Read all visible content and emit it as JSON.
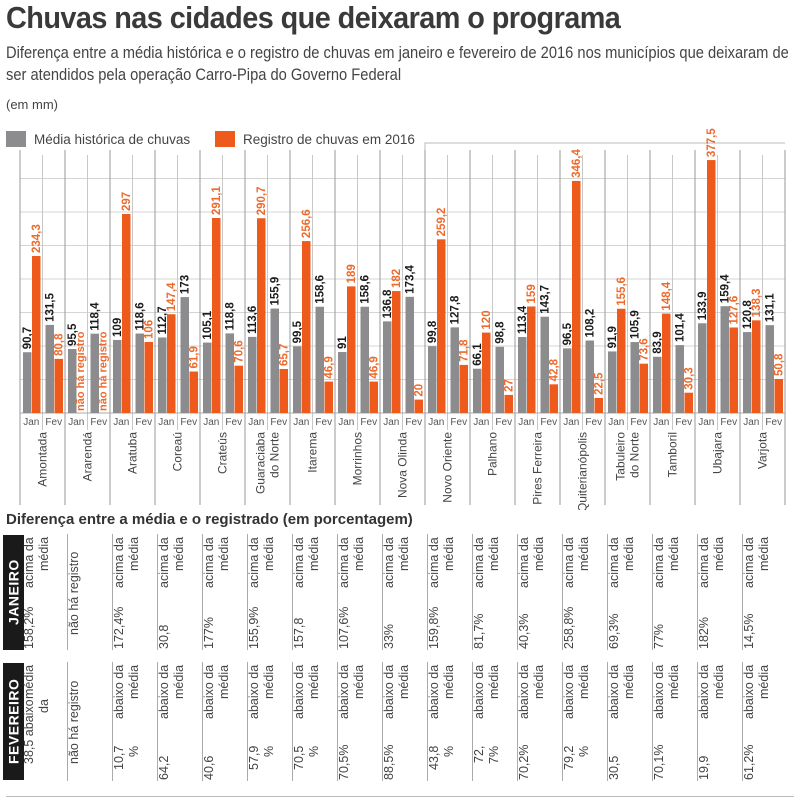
{
  "header": {
    "title": "Chuvas nas cidades que deixaram o programa",
    "subtitle": "Diferença entre a média histórica e o registro de chuvas em janeiro e fevereiro de 2016 nos municípios que deixaram de ser atendidos pela operação Carro-Pipa do Governo Federal",
    "unit": "(em mm)"
  },
  "legend": {
    "historic": "Média histórica de chuvas",
    "current": "Registro de chuvas em 2016"
  },
  "colors": {
    "historic": "#8c8c8e",
    "current": "#ee5a1c",
    "historic_label": "#1a1a1a",
    "current_label": "#ee6a2c"
  },
  "chart_data": {
    "type": "bar",
    "title": "Chuvas nas cidades que deixaram o programa",
    "ylabel": "mm",
    "ylim": [
      0,
      380
    ],
    "grid": true,
    "months": [
      "Jan",
      "Fev"
    ],
    "no_record_label": "não há registro",
    "cities": [
      {
        "name": [
          "Amontada"
        ],
        "jan": [
          90.7,
          234.3
        ],
        "fev": [
          131.5,
          80.8
        ],
        "jan_labels": [
          "90,7",
          "234,3"
        ],
        "fev_labels": [
          "131,5",
          "80,8"
        ]
      },
      {
        "name": [
          "Ararendá"
        ],
        "jan": [
          95.5,
          null
        ],
        "fev": [
          118.4,
          null
        ],
        "jan_labels": [
          "95,5",
          null
        ],
        "fev_labels": [
          "118,4",
          null
        ]
      },
      {
        "name": [
          "Aratuba"
        ],
        "jan": [
          109,
          297
        ],
        "fev": [
          118.6,
          106
        ],
        "jan_labels": [
          "109",
          "297"
        ],
        "fev_labels": [
          "118,6",
          "106"
        ]
      },
      {
        "name": [
          "Coreaú"
        ],
        "jan": [
          112.7,
          147.4
        ],
        "fev": [
          173,
          61.9
        ],
        "jan_labels": [
          "112,7",
          "147,4"
        ],
        "fev_labels": [
          "173",
          "61,9"
        ]
      },
      {
        "name": [
          "Crateús"
        ],
        "jan": [
          105.1,
          291.1
        ],
        "fev": [
          118.8,
          70.6
        ],
        "jan_labels": [
          "105,1",
          "291,1"
        ],
        "fev_labels": [
          "118,8",
          "70,6"
        ]
      },
      {
        "name": [
          "Guaraciaba",
          "do Norte"
        ],
        "jan": [
          113.6,
          290.7
        ],
        "fev": [
          155.9,
          65.7
        ],
        "jan_labels": [
          "113,6",
          "290,7"
        ],
        "fev_labels": [
          "155,9",
          "65,7"
        ]
      },
      {
        "name": [
          "Itarema"
        ],
        "jan": [
          99.5,
          256.6
        ],
        "fev": [
          158.6,
          46.9
        ],
        "jan_labels": [
          "99,5",
          "256,6"
        ],
        "fev_labels": [
          "158,6",
          "46,9"
        ]
      },
      {
        "name": [
          "Morrinhos"
        ],
        "jan": [
          91,
          189
        ],
        "fev": [
          158.6,
          46.9
        ],
        "jan_labels": [
          "91",
          "189"
        ],
        "fev_labels": [
          "158,6",
          "46,9"
        ]
      },
      {
        "name": [
          "Nova Olinda"
        ],
        "jan": [
          136.8,
          182
        ],
        "fev": [
          173.4,
          20
        ],
        "jan_labels": [
          "136,8",
          "182"
        ],
        "fev_labels": [
          "173,4",
          "20"
        ]
      },
      {
        "name": [
          "Novo Oriente"
        ],
        "jan": [
          99.8,
          259.2
        ],
        "fev": [
          127.8,
          71.8
        ],
        "jan_labels": [
          "99,8",
          "259,2"
        ],
        "fev_labels": [
          "127,8",
          "71,8"
        ]
      },
      {
        "name": [
          "Palhano"
        ],
        "jan": [
          66.1,
          120
        ],
        "fev": [
          98.8,
          27
        ],
        "jan_labels": [
          "66,1",
          "120"
        ],
        "fev_labels": [
          "98,8",
          "27"
        ]
      },
      {
        "name": [
          "Pires Ferreira"
        ],
        "jan": [
          113.4,
          159
        ],
        "fev": [
          143.7,
          42.8
        ],
        "jan_labels": [
          "113,4",
          "159"
        ],
        "fev_labels": [
          "143,7",
          "42,8"
        ]
      },
      {
        "name": [
          "Quiterianópolis"
        ],
        "jan": [
          96.5,
          346.4
        ],
        "fev": [
          108.2,
          22.5
        ],
        "jan_labels": [
          "96,5",
          "346,4"
        ],
        "fev_labels": [
          "108,2",
          "22,5"
        ]
      },
      {
        "name": [
          "Tabuleiro",
          "do Norte"
        ],
        "jan": [
          91.9,
          155.6
        ],
        "fev": [
          105.9,
          73.6
        ],
        "jan_labels": [
          "91,9",
          "155,6"
        ],
        "fev_labels": [
          "105,9",
          "73,6"
        ]
      },
      {
        "name": [
          "Tamboril"
        ],
        "jan": [
          83.9,
          148.4
        ],
        "fev": [
          101.4,
          30.3
        ],
        "jan_labels": [
          "83,9",
          "148,4"
        ],
        "fev_labels": [
          "101,4",
          "30,3"
        ]
      },
      {
        "name": [
          "Ubajara"
        ],
        "jan": [
          133.9,
          377.5
        ],
        "fev": [
          159.4,
          127.6
        ],
        "jan_labels": [
          "133,9",
          "377,5"
        ],
        "fev_labels": [
          "159,4",
          "127,6"
        ]
      },
      {
        "name": [
          "Varjota"
        ],
        "jan": [
          120.8,
          138.3
        ],
        "fev": [
          131.1,
          50.8
        ],
        "jan_labels": [
          "120,8",
          "138,3"
        ],
        "fev_labels": [
          "131,1",
          "50,8"
        ]
      }
    ]
  },
  "table": {
    "title": "Diferença entre a média e o registrado (em porcentagem)",
    "row_labels": [
      "JANEIRO",
      "FEVEREIRO"
    ],
    "janeiro": [
      [
        "158,2%",
        "acima da média"
      ],
      [
        "não há registro"
      ],
      [
        "172,4%",
        "acima da média"
      ],
      [
        "30,8",
        "acima da média"
      ],
      [
        "177%",
        "acima da média"
      ],
      [
        "155,9%",
        "acima da média"
      ],
      [
        "157,8",
        "acima da média"
      ],
      [
        "107,6%",
        "acima da média"
      ],
      [
        "33%",
        "acima da média"
      ],
      [
        "159,8%",
        "acima da média"
      ],
      [
        "81,7%",
        "acima da média"
      ],
      [
        "40,3%",
        "acima da média"
      ],
      [
        "258,8%",
        "acima da média"
      ],
      [
        "69,3%",
        "acima da média"
      ],
      [
        "77%",
        "acima da média"
      ],
      [
        "182%",
        "acima da média"
      ],
      [
        "14,5%",
        "acima da média"
      ]
    ],
    "fevereiro": [
      [
        "38,5 abaixo da",
        "média"
      ],
      [
        "não há registro"
      ],
      [
        "10,7 %",
        "abaixo da média"
      ],
      [
        "64,2",
        "abaixo da média"
      ],
      [
        "40,6",
        "abaixo da média"
      ],
      [
        "57,9 %",
        "abaixo da média"
      ],
      [
        "70,5 %",
        "abaixo da média"
      ],
      [
        "70,5%",
        "abaixo da média"
      ],
      [
        "88,5%",
        "abaixo da média"
      ],
      [
        "43,8 %",
        "abaixo da média"
      ],
      [
        "72, 7%",
        "abaixo da média"
      ],
      [
        "70,2%",
        "abaixo da média"
      ],
      [
        "79,2 %",
        "abaixo da média"
      ],
      [
        "30,5",
        "abaixo da média"
      ],
      [
        "70,1%",
        "abaixo da média"
      ],
      [
        "19,9",
        "abaixo da média"
      ],
      [
        "61,2%",
        "abaixo da média"
      ]
    ]
  }
}
